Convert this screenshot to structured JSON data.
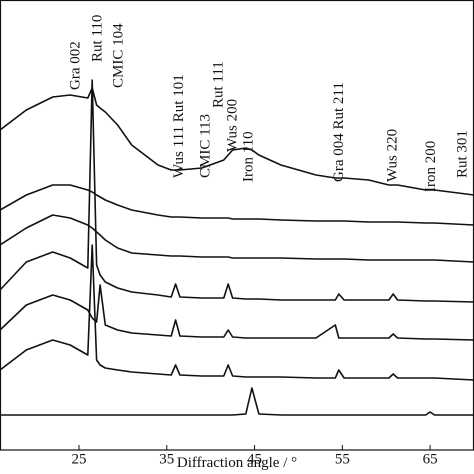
{
  "chart_data": {
    "type": "line",
    "x_label": "Diffraction angle / °",
    "xlim": [
      16,
      70
    ],
    "xticks": [
      25,
      35,
      45,
      55,
      65
    ],
    "ylim": [
      0,
      450
    ],
    "x": [
      16,
      19,
      22,
      24,
      26,
      26.5,
      27,
      27.4,
      28,
      29.4,
      31,
      34,
      35.5,
      36,
      36.5,
      39,
      41.5,
      42,
      42.5,
      44,
      44.7,
      45.5,
      48,
      52,
      54.2,
      54.6,
      55.2,
      58,
      60.3,
      60.8,
      61.3,
      64.5,
      65,
      65.5,
      70
    ],
    "series": [
      {
        "color": "#111111",
        "values": [
          320,
          340,
          353,
          355,
          352,
          362,
          345,
          342,
          338,
          325,
          305,
          285,
          280,
          280,
          280,
          282,
          290,
          295,
          300,
          302,
          300,
          295,
          285,
          275,
          272,
          272,
          272,
          270,
          265,
          265,
          265,
          260,
          260,
          260,
          255
        ]
      },
      {
        "color": "#111111",
        "values": [
          240,
          255,
          265,
          265,
          260,
          258,
          255,
          253,
          250,
          245,
          240,
          235,
          233,
          233,
          233,
          232,
          232,
          232,
          231,
          231,
          231,
          231,
          230,
          229,
          229,
          229,
          229,
          228,
          228,
          228,
          228,
          227,
          227,
          227,
          225
        ]
      },
      {
        "color": "#111111",
        "values": [
          205,
          222,
          235,
          232,
          225,
          222,
          218,
          215,
          210,
          202,
          197,
          195,
          194,
          194,
          194,
          193,
          193,
          193,
          192,
          192,
          192,
          192,
          192,
          191,
          191,
          191,
          191,
          190,
          190,
          190,
          190,
          190,
          190,
          190,
          188
        ]
      },
      {
        "color": "#111111",
        "values": [
          160,
          188,
          198,
          192,
          182,
          370,
          185,
          175,
          168,
          162,
          158,
          155,
          153,
          166,
          153,
          152,
          152,
          166,
          152,
          151,
          151,
          151,
          150,
          150,
          150,
          156,
          150,
          150,
          150,
          156,
          150,
          149,
          149,
          149,
          148
        ]
      },
      {
        "color": "#111111",
        "values": [
          120,
          145,
          155,
          150,
          140,
          132,
          128,
          165,
          125,
          120,
          117,
          115,
          114,
          130,
          114,
          113,
          113,
          120,
          113,
          112,
          112,
          112,
          112,
          112,
          125,
          112,
          112,
          112,
          112,
          116,
          112,
          111,
          111,
          111,
          110
        ]
      },
      {
        "color": "#111111",
        "values": [
          80,
          100,
          110,
          105,
          95,
          205,
          90,
          85,
          82,
          80,
          78,
          76,
          75,
          85,
          75,
          74,
          74,
          85,
          74,
          73,
          73,
          73,
          73,
          72,
          72,
          80,
          72,
          72,
          72,
          76,
          72,
          72,
          72,
          72,
          70
        ]
      },
      {
        "color": "#111111",
        "values": [
          35,
          35,
          35,
          35,
          35,
          35,
          35,
          35,
          35,
          35,
          35,
          35,
          35,
          35,
          35,
          35,
          35,
          35,
          35,
          36,
          62,
          36,
          35,
          35,
          35,
          35,
          35,
          35,
          35,
          35,
          35,
          35,
          38,
          35,
          35
        ]
      }
    ],
    "annotations": [
      {
        "text": "Gra 002",
        "x": 24.5
      },
      {
        "text": "Rut 110",
        "x": 27.0
      },
      {
        "text": "CMIC 104",
        "x": 29.4
      },
      {
        "text": "Wus 111 Rut 101",
        "x": 36.3
      },
      {
        "text": "CMIC 113",
        "x": 39.3
      },
      {
        "text": "Rut 111",
        "x": 40.8
      },
      {
        "text": "Wus 200",
        "x": 42.4
      },
      {
        "text": "Iron 110",
        "x": 44.2
      },
      {
        "text": "Gra 004 Rut 211",
        "x": 54.5
      },
      {
        "text": "Wus 220",
        "x": 60.6
      },
      {
        "text": "Iron 200",
        "x": 65.0
      },
      {
        "text": "Rut 301",
        "x": 68.6
      }
    ]
  }
}
